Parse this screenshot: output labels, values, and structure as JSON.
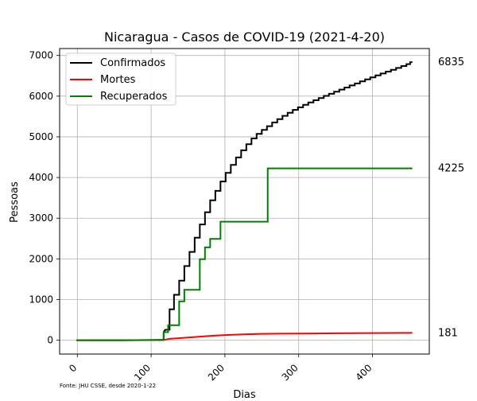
{
  "chart_data": {
    "type": "line",
    "title": "Nicaragua - Casos de COVID-19 (2021-4-20)",
    "xlabel": "Dias",
    "ylabel": "Pessoas",
    "xlim": [
      -24,
      477
    ],
    "ylim": [
      -340,
      7170
    ],
    "xticks": [
      0,
      100,
      200,
      300,
      400
    ],
    "yticks": [
      0,
      1000,
      2000,
      3000,
      4000,
      5000,
      6000,
      7000
    ],
    "grid": true,
    "legend_position": "top-left",
    "footnote": "Fonte: JHU CSSE, desde 2020-1-22",
    "series": [
      {
        "name": "Confirmados",
        "color": "#000000",
        "end_label": "6835",
        "points": [
          [
            0,
            0
          ],
          [
            60,
            0
          ],
          [
            100,
            4
          ],
          [
            112,
            8
          ],
          [
            117,
            8
          ],
          [
            117,
            200
          ],
          [
            119,
            254
          ],
          [
            122,
            259
          ],
          [
            125,
            259
          ],
          [
            125,
            759
          ],
          [
            131,
            759
          ],
          [
            131,
            1118
          ],
          [
            138,
            1118
          ],
          [
            138,
            1464
          ],
          [
            145,
            1464
          ],
          [
            145,
            1823
          ],
          [
            152,
            1823
          ],
          [
            152,
            2170
          ],
          [
            159,
            2170
          ],
          [
            159,
            2519
          ],
          [
            166,
            2519
          ],
          [
            166,
            2846
          ],
          [
            173,
            2846
          ],
          [
            173,
            3147
          ],
          [
            180,
            3147
          ],
          [
            180,
            3439
          ],
          [
            187,
            3439
          ],
          [
            187,
            3672
          ],
          [
            194,
            3672
          ],
          [
            194,
            3902
          ],
          [
            201,
            3902
          ],
          [
            201,
            4115
          ],
          [
            208,
            4115
          ],
          [
            208,
            4311
          ],
          [
            215,
            4311
          ],
          [
            215,
            4494
          ],
          [
            222,
            4494
          ],
          [
            222,
            4668
          ],
          [
            229,
            4668
          ],
          [
            229,
            4818
          ],
          [
            236,
            4818
          ],
          [
            236,
            4961
          ],
          [
            243,
            4961
          ],
          [
            243,
            5073
          ],
          [
            250,
            5073
          ],
          [
            250,
            5170
          ],
          [
            257,
            5170
          ],
          [
            257,
            5261
          ],
          [
            264,
            5261
          ],
          [
            264,
            5353
          ],
          [
            271,
            5353
          ],
          [
            271,
            5434
          ],
          [
            278,
            5434
          ],
          [
            278,
            5514
          ],
          [
            285,
            5514
          ],
          [
            285,
            5591
          ],
          [
            292,
            5591
          ],
          [
            292,
            5661
          ],
          [
            299,
            5661
          ],
          [
            299,
            5726
          ],
          [
            306,
            5726
          ],
          [
            306,
            5787
          ],
          [
            313,
            5787
          ],
          [
            313,
            5845
          ],
          [
            320,
            5845
          ],
          [
            320,
            5900
          ],
          [
            327,
            5900
          ],
          [
            327,
            5953
          ],
          [
            334,
            5953
          ],
          [
            334,
            6006
          ],
          [
            341,
            6006
          ],
          [
            341,
            6058
          ],
          [
            348,
            6058
          ],
          [
            348,
            6109
          ],
          [
            355,
            6109
          ],
          [
            355,
            6160
          ],
          [
            362,
            6160
          ],
          [
            362,
            6211
          ],
          [
            369,
            6211
          ],
          [
            369,
            6262
          ],
          [
            376,
            6262
          ],
          [
            376,
            6313
          ],
          [
            383,
            6313
          ],
          [
            383,
            6364
          ],
          [
            390,
            6364
          ],
          [
            390,
            6413
          ],
          [
            397,
            6413
          ],
          [
            397,
            6462
          ],
          [
            404,
            6462
          ],
          [
            404,
            6510
          ],
          [
            411,
            6510
          ],
          [
            411,
            6556
          ],
          [
            418,
            6556
          ],
          [
            418,
            6602
          ],
          [
            425,
            6602
          ],
          [
            425,
            6648
          ],
          [
            432,
            6648
          ],
          [
            432,
            6694
          ],
          [
            439,
            6694
          ],
          [
            439,
            6740
          ],
          [
            446,
            6740
          ],
          [
            446,
            6787
          ],
          [
            451,
            6787
          ],
          [
            451,
            6835
          ],
          [
            453,
            6835
          ]
        ]
      },
      {
        "name": "Mortes",
        "color": "#ff0000",
        "end_label": "181",
        "points": [
          [
            0,
            0
          ],
          [
            80,
            0
          ],
          [
            110,
            5
          ],
          [
            117,
            6
          ],
          [
            125,
            35
          ],
          [
            150,
            66
          ],
          [
            175,
            99
          ],
          [
            200,
            128
          ],
          [
            225,
            145
          ],
          [
            250,
            156
          ],
          [
            275,
            160
          ],
          [
            300,
            164
          ],
          [
            325,
            167
          ],
          [
            350,
            170
          ],
          [
            375,
            173
          ],
          [
            400,
            176
          ],
          [
            425,
            178
          ],
          [
            453,
            181
          ]
        ]
      },
      {
        "name": "Recuperados",
        "color": "#008000",
        "end_label": "4225",
        "points": [
          [
            0,
            0
          ],
          [
            60,
            0
          ],
          [
            100,
            4
          ],
          [
            117,
            7
          ],
          [
            117,
            199
          ],
          [
            123,
            199
          ],
          [
            123,
            370
          ],
          [
            138,
            370
          ],
          [
            138,
            955
          ],
          [
            145,
            955
          ],
          [
            145,
            1238
          ],
          [
            166,
            1238
          ],
          [
            166,
            1993
          ],
          [
            173,
            1993
          ],
          [
            173,
            2282
          ],
          [
            180,
            2282
          ],
          [
            180,
            2492
          ],
          [
            194,
            2492
          ],
          [
            194,
            2913
          ],
          [
            258,
            2913
          ],
          [
            258,
            4225
          ],
          [
            453,
            4225
          ]
        ]
      }
    ]
  }
}
